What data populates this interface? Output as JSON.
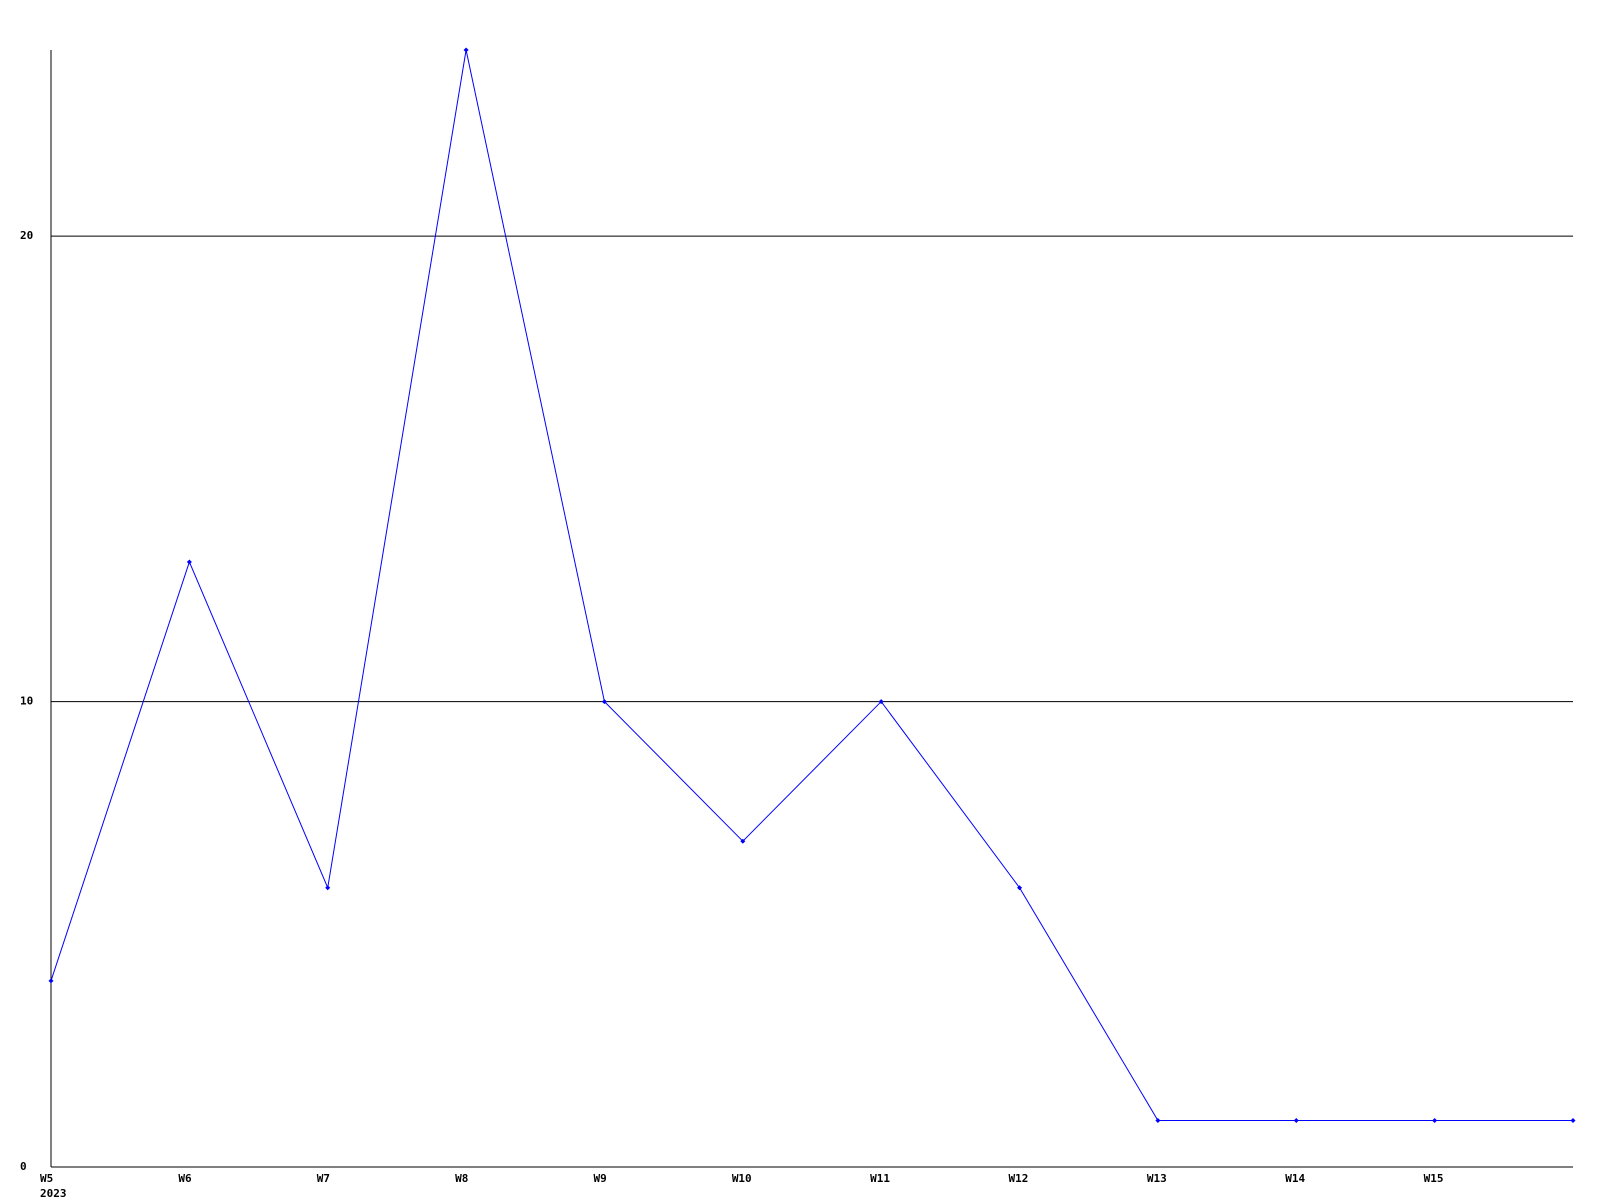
{
  "chart_data": {
    "type": "line",
    "categories": [
      "W5",
      "W6",
      "W7",
      "W8",
      "W9",
      "W10",
      "W11",
      "W12",
      "W13",
      "W14",
      "W15",
      null
    ],
    "x_sublabel": "2023",
    "series": [
      {
        "color": "#0000ff",
        "values": [
          4,
          13,
          6,
          24,
          10,
          7,
          10,
          6,
          1,
          1,
          1,
          1
        ]
      }
    ],
    "ylim": [
      0,
      24
    ],
    "yticks": [
      0,
      10,
      20
    ],
    "grid": true
  }
}
